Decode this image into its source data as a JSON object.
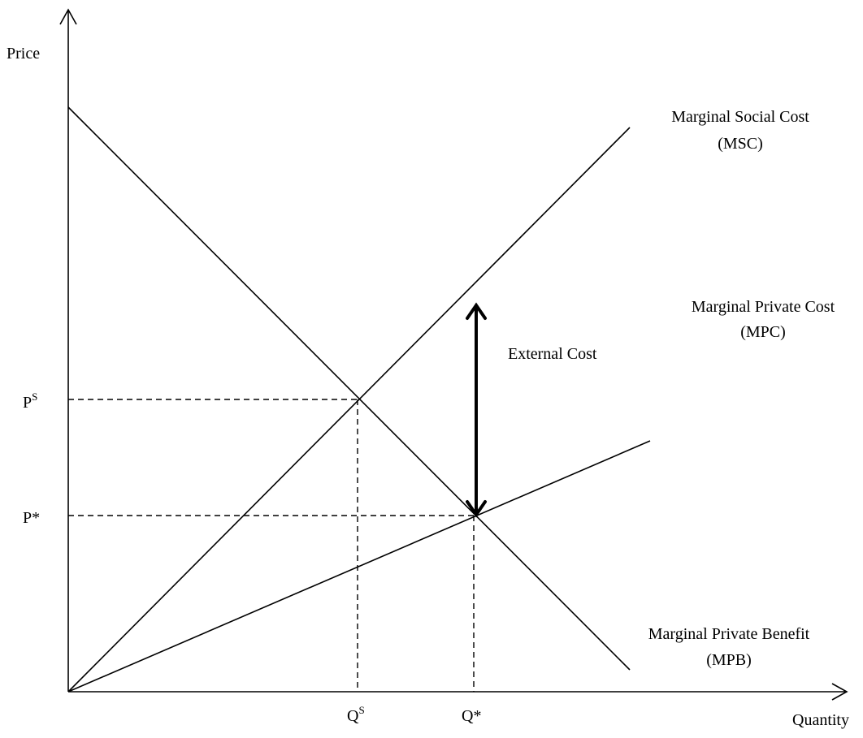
{
  "axes": {
    "y_label": "Price",
    "x_label": "Quantity"
  },
  "curves": {
    "msc": {
      "name": "Marginal Social Cost",
      "abbr": "(MSC)"
    },
    "mpc": {
      "name": "Marginal Private Cost",
      "abbr": "(MPC)"
    },
    "mpb": {
      "name": "Marginal Private Benefit",
      "abbr": "(MPB)"
    }
  },
  "annotations": {
    "external_cost": "External Cost"
  },
  "ticks": {
    "ps": {
      "base": "P",
      "sup": "S"
    },
    "pstar": {
      "text": "P*"
    },
    "qs": {
      "base": "Q",
      "sup": "S"
    },
    "qstar": {
      "text": "Q*"
    }
  }
}
